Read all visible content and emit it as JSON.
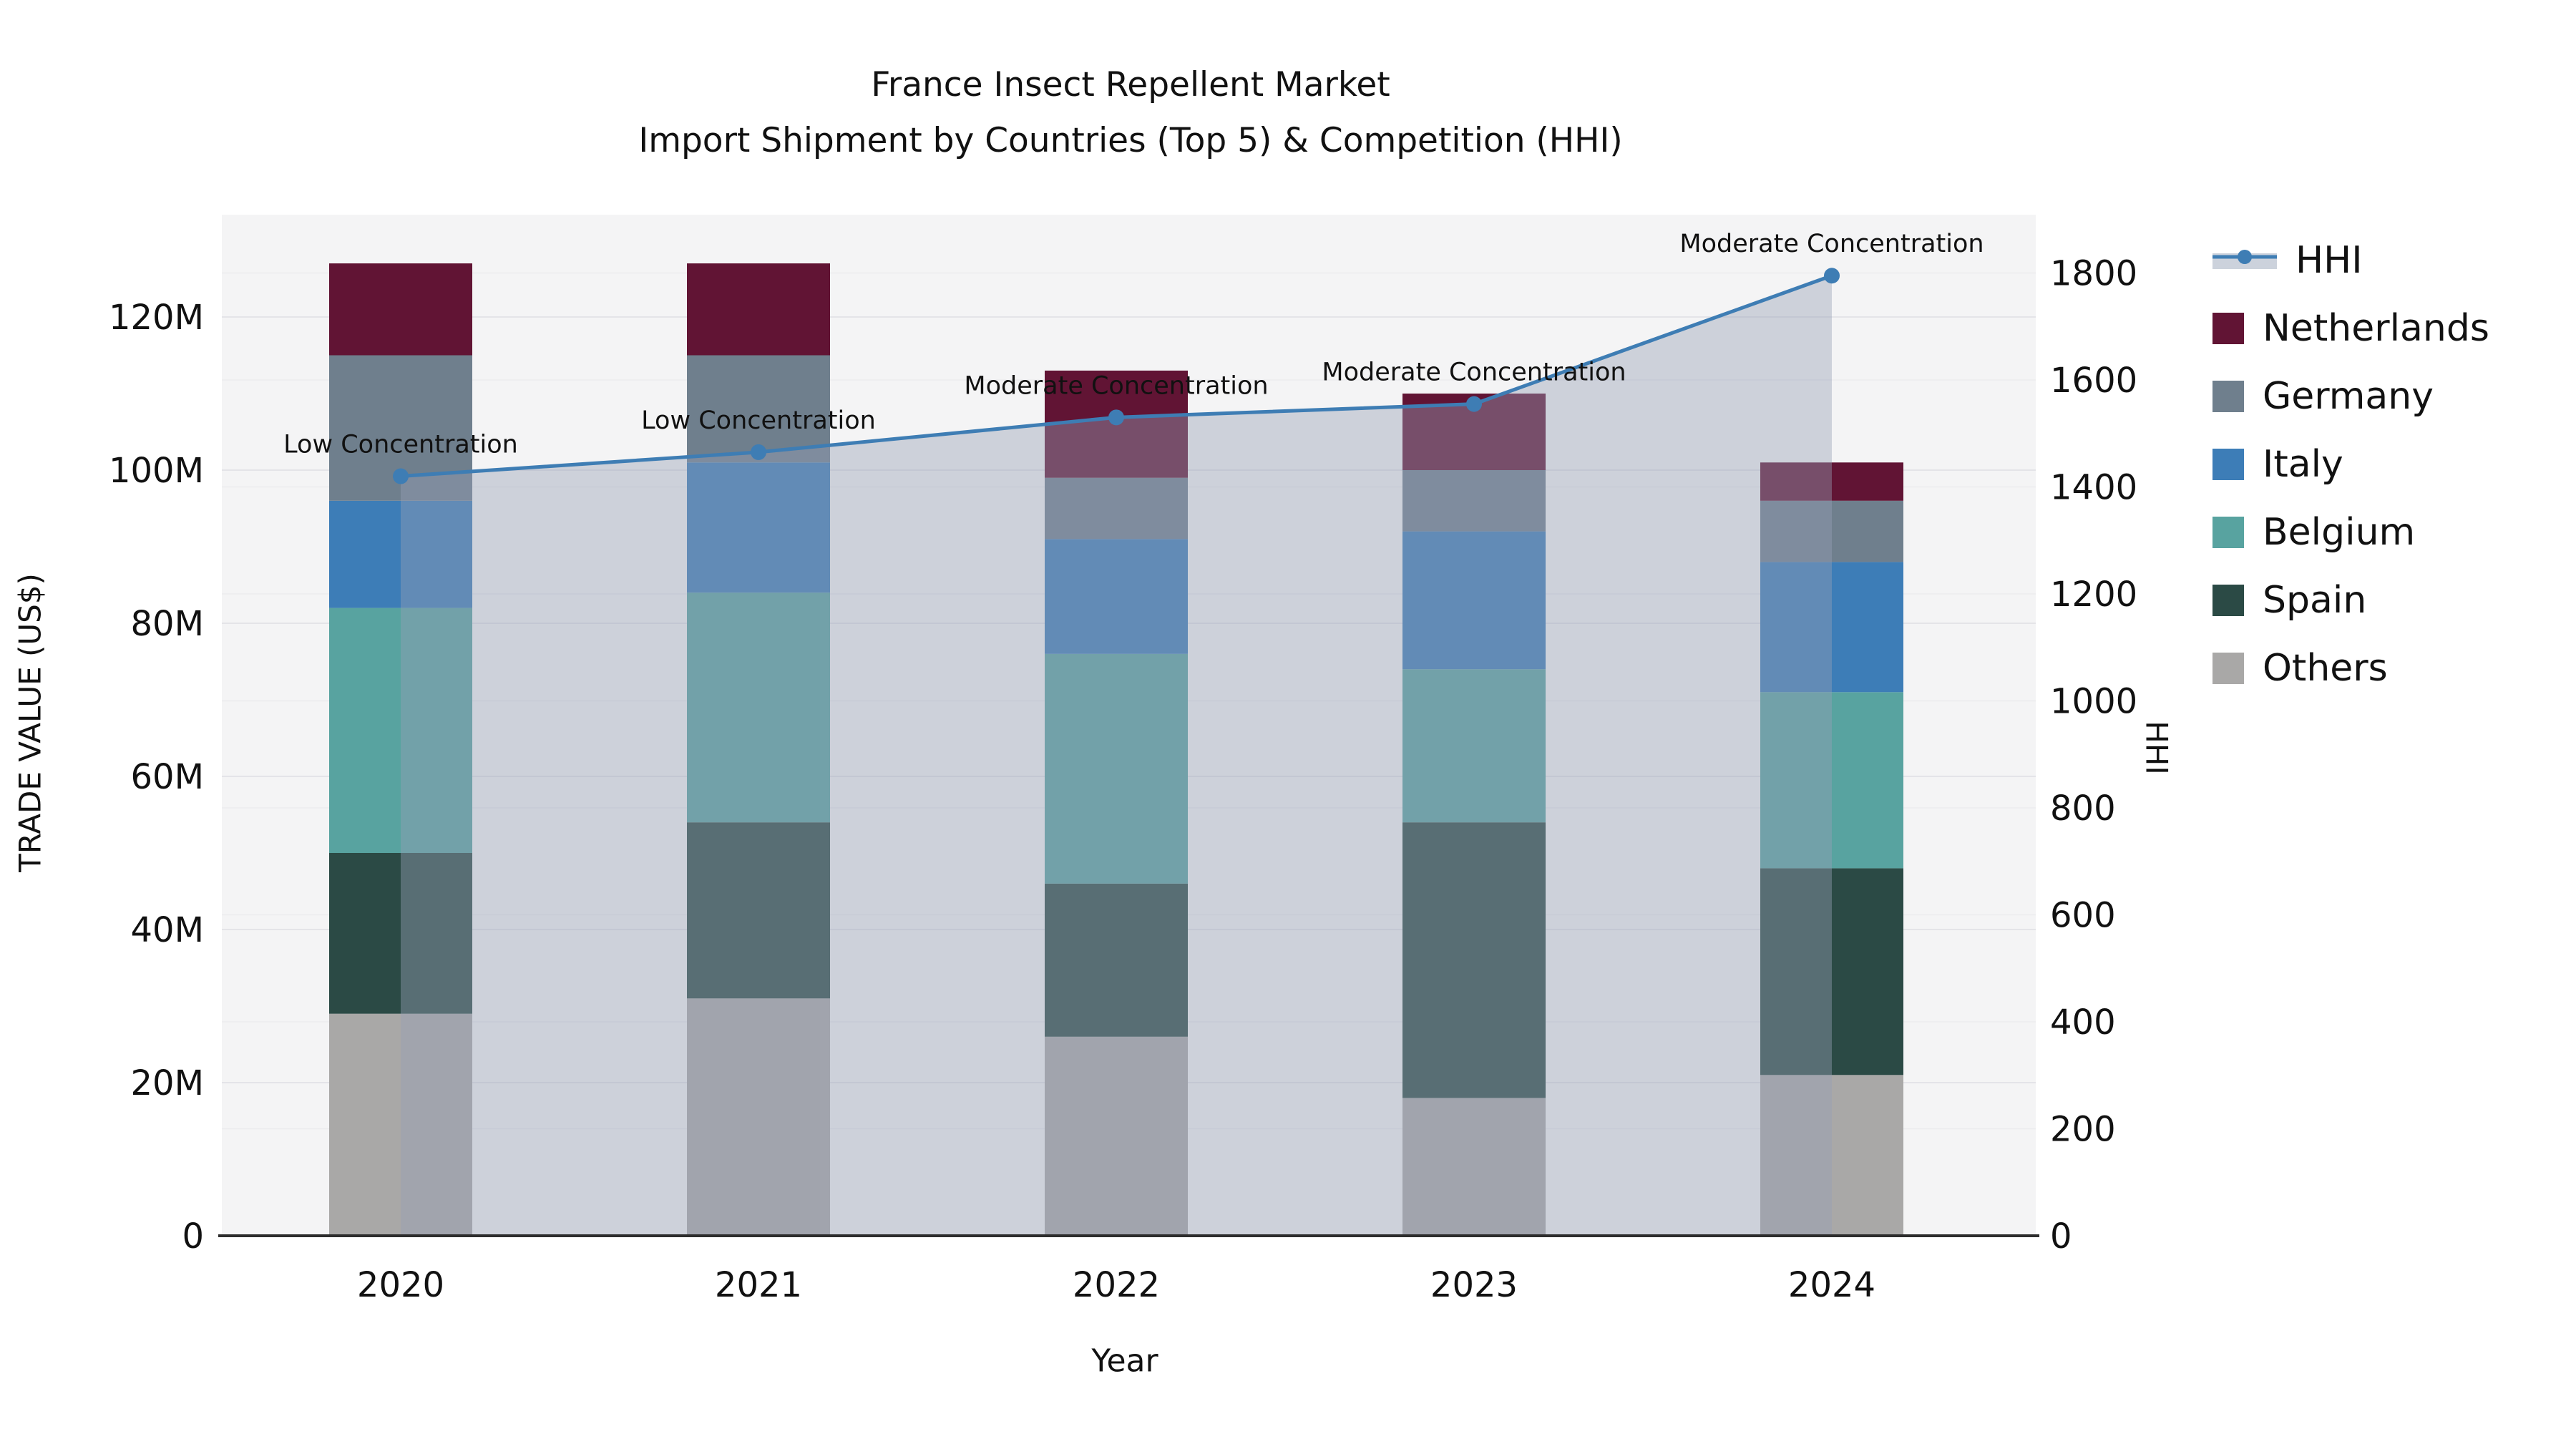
{
  "title": {
    "line1": "France Insect Repellent Market",
    "line2": "Import Shipment by Countries (Top 5) & Competition (HHI)"
  },
  "axes": {
    "x_label": "Year",
    "y_left_label": "TRADE VALUE (US$)",
    "y_right_label": "HHI",
    "y_left_ticks": [
      "0",
      "20M",
      "40M",
      "60M",
      "80M",
      "100M",
      "120M"
    ],
    "y_left_tick_values": [
      0,
      20,
      40,
      60,
      80,
      100,
      120
    ],
    "y_right_ticks": [
      "0",
      "200",
      "400",
      "600",
      "800",
      "1000",
      "1200",
      "1400",
      "1600",
      "1800"
    ],
    "y_right_tick_values": [
      0,
      200,
      400,
      600,
      800,
      1000,
      1200,
      1400,
      1600,
      1800
    ]
  },
  "chart_data": {
    "type": "bar",
    "subtype": "stacked-bars-with-hhi-line-and-area",
    "title": "France Insect Repellent Market — Import Shipment by Countries (Top 5) & Competition (HHI)",
    "xlabel": "Year",
    "ylabel_left": "TRADE VALUE (US$)",
    "ylabel_right": "HHI",
    "categories": [
      "2020",
      "2021",
      "2022",
      "2023",
      "2024"
    ],
    "unit": "US$ millions (left axis), HHI index (right axis)",
    "ylim_left_musd": [
      0,
      133
    ],
    "ylim_right_hhi": [
      0,
      1909
    ],
    "grid": true,
    "legend_position": "right",
    "series": [
      {
        "name": "Others",
        "color": "#a9a8a7",
        "values_musd": [
          29,
          31,
          26,
          18,
          21
        ]
      },
      {
        "name": "Spain",
        "color": "#2b4a45",
        "values_musd": [
          21,
          23,
          20,
          36,
          27
        ]
      },
      {
        "name": "Belgium",
        "color": "#58a3a0",
        "values_musd": [
          32,
          30,
          30,
          20,
          23
        ]
      },
      {
        "name": "Italy",
        "color": "#3d7db7",
        "values_musd": [
          14,
          17,
          15,
          18,
          17
        ]
      },
      {
        "name": "Germany",
        "color": "#6f7f8d",
        "values_musd": [
          19,
          14,
          8,
          8,
          8
        ]
      },
      {
        "name": "Netherlands",
        "color": "#611434",
        "values_musd": [
          12,
          12,
          14,
          10,
          5
        ]
      }
    ],
    "bar_totals_musd": [
      127,
      127,
      113,
      110,
      101
    ],
    "line_series": {
      "name": "HHI",
      "axis": "right",
      "values": [
        1420,
        1465,
        1530,
        1555,
        1795
      ],
      "line_color": "#3e7db4",
      "area_fill_color": "rgba(150,160,180,0.42)",
      "marker": "circle"
    },
    "annotations": [
      {
        "category": "2020",
        "text": "Low Concentration"
      },
      {
        "category": "2021",
        "text": "Low Concentration"
      },
      {
        "category": "2022",
        "text": "Moderate Concentration"
      },
      {
        "category": "2023",
        "text": "Moderate Concentration"
      },
      {
        "category": "2024",
        "text": "Moderate Concentration"
      }
    ]
  },
  "legend": {
    "items": [
      {
        "label": "HHI",
        "type": "line",
        "color": "#3e7db4",
        "band_color": "#ccd2dc"
      },
      {
        "label": "Netherlands",
        "type": "square",
        "color": "#611434"
      },
      {
        "label": "Germany",
        "type": "square",
        "color": "#6f7f8d"
      },
      {
        "label": "Italy",
        "type": "square",
        "color": "#3d7db7"
      },
      {
        "label": "Belgium",
        "type": "square",
        "color": "#58a3a0"
      },
      {
        "label": "Spain",
        "type": "square",
        "color": "#2b4a45"
      },
      {
        "label": "Others",
        "type": "square",
        "color": "#a9a8a7"
      }
    ]
  },
  "style": {
    "plot_background": "#f4f4f5",
    "gridline_color": "#e4e4e8",
    "gridline_color_right": "#ebebee",
    "baseline_color": "#2d2d2d",
    "text_color": "#111111"
  }
}
